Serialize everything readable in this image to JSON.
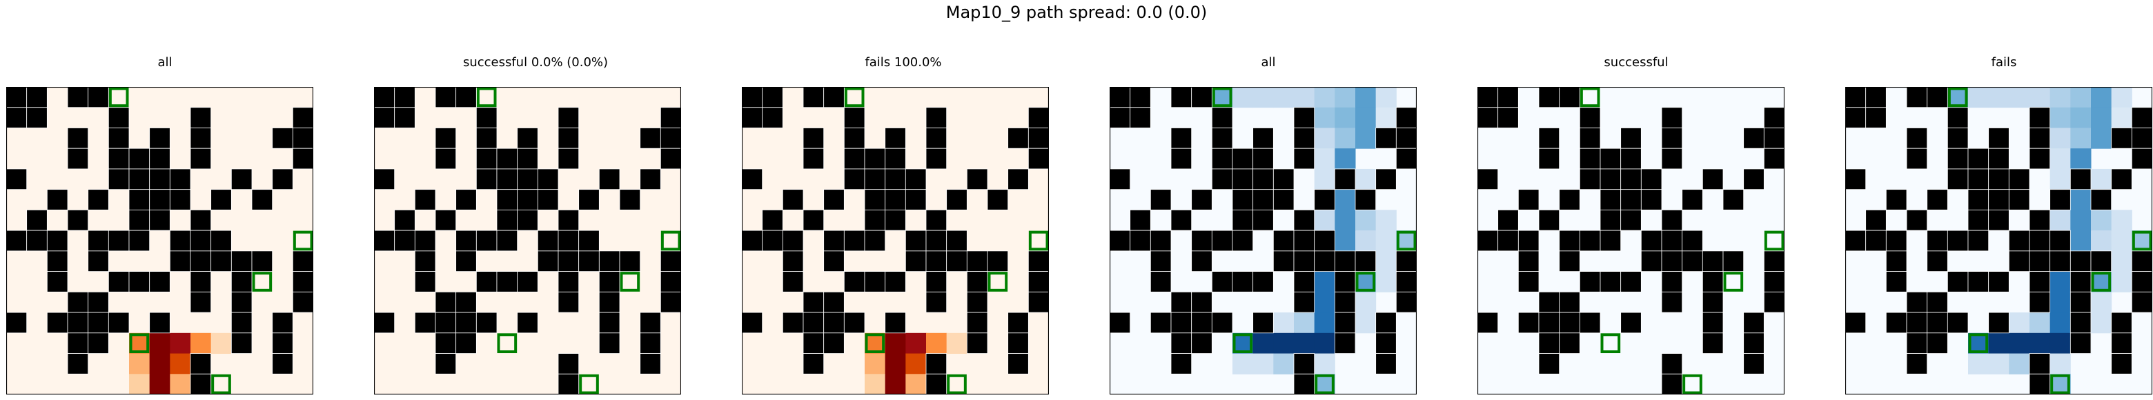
{
  "title": "Map10_9 path spread: 0.0 (0.0)",
  "chart_data": {
    "type": "heatmap",
    "title": "Map10_9 path spread: 0.0 (0.0)",
    "grid_size": [
      15,
      15
    ],
    "walls": [
      [
        0,
        0
      ],
      [
        0,
        1
      ],
      [
        0,
        3
      ],
      [
        0,
        4
      ],
      [
        1,
        0
      ],
      [
        1,
        1
      ],
      [
        1,
        5
      ],
      [
        1,
        9
      ],
      [
        1,
        14
      ],
      [
        2,
        3
      ],
      [
        2,
        5
      ],
      [
        2,
        7
      ],
      [
        2,
        9
      ],
      [
        2,
        13
      ],
      [
        2,
        14
      ],
      [
        3,
        3
      ],
      [
        3,
        5
      ],
      [
        3,
        6
      ],
      [
        3,
        7
      ],
      [
        3,
        9
      ],
      [
        3,
        14
      ],
      [
        4,
        0
      ],
      [
        4,
        5
      ],
      [
        4,
        6
      ],
      [
        4,
        7
      ],
      [
        4,
        8
      ],
      [
        4,
        11
      ],
      [
        4,
        13
      ],
      [
        5,
        2
      ],
      [
        5,
        4
      ],
      [
        5,
        6
      ],
      [
        5,
        7
      ],
      [
        5,
        8
      ],
      [
        5,
        10
      ],
      [
        5,
        12
      ],
      [
        6,
        1
      ],
      [
        6,
        3
      ],
      [
        6,
        6
      ],
      [
        6,
        7
      ],
      [
        6,
        9
      ],
      [
        7,
        0
      ],
      [
        7,
        1
      ],
      [
        7,
        2
      ],
      [
        7,
        4
      ],
      [
        7,
        5
      ],
      [
        7,
        6
      ],
      [
        7,
        8
      ],
      [
        7,
        9
      ],
      [
        7,
        10
      ],
      [
        8,
        2
      ],
      [
        8,
        4
      ],
      [
        8,
        8
      ],
      [
        8,
        9
      ],
      [
        8,
        10
      ],
      [
        8,
        11
      ],
      [
        8,
        12
      ],
      [
        8,
        14
      ],
      [
        9,
        2
      ],
      [
        9,
        5
      ],
      [
        9,
        6
      ],
      [
        9,
        7
      ],
      [
        9,
        9
      ],
      [
        9,
        11
      ],
      [
        9,
        14
      ],
      [
        10,
        3
      ],
      [
        10,
        4
      ],
      [
        10,
        9
      ],
      [
        10,
        11
      ],
      [
        10,
        14
      ],
      [
        11,
        0
      ],
      [
        11,
        2
      ],
      [
        11,
        3
      ],
      [
        11,
        4
      ],
      [
        11,
        5
      ],
      [
        11,
        7
      ],
      [
        11,
        11
      ],
      [
        11,
        13
      ],
      [
        12,
        3
      ],
      [
        12,
        4
      ],
      [
        12,
        11
      ],
      [
        12,
        13
      ],
      [
        13,
        3
      ],
      [
        13,
        9
      ],
      [
        13,
        13
      ],
      [
        14,
        9
      ]
    ],
    "markers": [
      [
        0,
        5
      ],
      [
        7,
        14
      ],
      [
        9,
        12
      ],
      [
        12,
        6
      ],
      [
        14,
        10
      ]
    ],
    "panels": [
      {
        "title": "all",
        "colormap": "orange",
        "heat": [
          [
            12,
            6,
            0.45
          ],
          [
            12,
            7,
            1.0
          ],
          [
            12,
            8,
            0.85
          ],
          [
            12,
            9,
            0.4
          ],
          [
            12,
            10,
            0.15
          ],
          [
            13,
            6,
            0.3
          ],
          [
            13,
            7,
            1.0
          ],
          [
            13,
            8,
            0.6
          ],
          [
            14,
            6,
            0.2
          ],
          [
            14,
            7,
            1.0
          ],
          [
            14,
            8,
            0.3
          ]
        ]
      },
      {
        "title": "successful 0.0% (0.0%)",
        "colormap": "orange",
        "heat": []
      },
      {
        "title": "fails 100.0%",
        "colormap": "orange",
        "heat": [
          [
            12,
            6,
            0.45
          ],
          [
            12,
            7,
            1.0
          ],
          [
            12,
            8,
            0.85
          ],
          [
            12,
            9,
            0.4
          ],
          [
            12,
            10,
            0.15
          ],
          [
            13,
            6,
            0.3
          ],
          [
            13,
            7,
            1.0
          ],
          [
            13,
            8,
            0.6
          ],
          [
            14,
            6,
            0.2
          ],
          [
            14,
            7,
            1.0
          ],
          [
            14,
            8,
            0.3
          ]
        ]
      },
      {
        "title": "all",
        "colormap": "blue",
        "heat": [
          [
            0,
            5,
            0.4
          ],
          [
            0,
            6,
            0.2
          ],
          [
            0,
            7,
            0.2
          ],
          [
            0,
            8,
            0.2
          ],
          [
            0,
            9,
            0.2
          ],
          [
            0,
            10,
            0.25
          ],
          [
            0,
            11,
            0.3
          ],
          [
            0,
            12,
            0.45
          ],
          [
            0,
            13,
            0.15
          ],
          [
            1,
            10,
            0.3
          ],
          [
            1,
            11,
            0.35
          ],
          [
            1,
            12,
            0.45
          ],
          [
            1,
            13,
            0.12
          ],
          [
            2,
            10,
            0.2
          ],
          [
            2,
            11,
            0.3
          ],
          [
            2,
            12,
            0.45
          ],
          [
            3,
            10,
            0.15
          ],
          [
            3,
            11,
            0.5
          ],
          [
            4,
            10,
            0.15
          ],
          [
            4,
            12,
            0.15
          ],
          [
            5,
            11,
            0.5
          ],
          [
            5,
            12,
            0.2
          ],
          [
            6,
            10,
            0.2
          ],
          [
            6,
            11,
            0.5
          ],
          [
            6,
            12,
            0.25
          ],
          [
            6,
            13,
            0.15
          ],
          [
            7,
            11,
            0.5
          ],
          [
            7,
            12,
            0.2
          ],
          [
            7,
            13,
            0.15
          ],
          [
            7,
            14,
            0.3
          ],
          [
            8,
            10,
            0.2
          ],
          [
            8,
            11,
            0.55
          ],
          [
            8,
            12,
            0.25
          ],
          [
            8,
            13,
            0.15
          ],
          [
            9,
            10,
            0.6
          ],
          [
            9,
            11,
            0.85
          ],
          [
            9,
            12,
            0.45
          ],
          [
            9,
            13,
            0.15
          ],
          [
            10,
            10,
            0.6
          ],
          [
            10,
            12,
            0.15
          ],
          [
            11,
            8,
            0.15
          ],
          [
            11,
            9,
            0.25
          ],
          [
            11,
            10,
            0.6
          ],
          [
            11,
            12,
            0.15
          ],
          [
            12,
            6,
            0.6
          ],
          [
            12,
            7,
            0.95
          ],
          [
            12,
            8,
            0.95
          ],
          [
            12,
            9,
            0.95
          ],
          [
            12,
            10,
            0.95
          ],
          [
            12,
            11,
            0.3
          ],
          [
            13,
            6,
            0.15
          ],
          [
            13,
            7,
            0.15
          ],
          [
            13,
            8,
            0.25
          ],
          [
            13,
            9,
            0.15
          ],
          [
            13,
            10,
            0.15
          ],
          [
            14,
            9,
            0.1
          ],
          [
            14,
            10,
            0.35
          ]
        ]
      },
      {
        "title": "successful",
        "colormap": "blue",
        "heat": []
      },
      {
        "title": "fails",
        "colormap": "blue",
        "heat": [
          [
            0,
            5,
            0.4
          ],
          [
            0,
            6,
            0.2
          ],
          [
            0,
            7,
            0.2
          ],
          [
            0,
            8,
            0.2
          ],
          [
            0,
            9,
            0.2
          ],
          [
            0,
            10,
            0.25
          ],
          [
            0,
            11,
            0.3
          ],
          [
            0,
            12,
            0.45
          ],
          [
            0,
            13,
            0.15
          ],
          [
            1,
            10,
            0.3
          ],
          [
            1,
            11,
            0.35
          ],
          [
            1,
            12,
            0.45
          ],
          [
            1,
            13,
            0.12
          ],
          [
            2,
            10,
            0.2
          ],
          [
            2,
            11,
            0.3
          ],
          [
            2,
            12,
            0.45
          ],
          [
            3,
            10,
            0.15
          ],
          [
            3,
            11,
            0.5
          ],
          [
            4,
            10,
            0.15
          ],
          [
            4,
            12,
            0.15
          ],
          [
            5,
            11,
            0.5
          ],
          [
            5,
            12,
            0.2
          ],
          [
            6,
            10,
            0.2
          ],
          [
            6,
            11,
            0.5
          ],
          [
            6,
            12,
            0.25
          ],
          [
            6,
            13,
            0.15
          ],
          [
            7,
            11,
            0.5
          ],
          [
            7,
            12,
            0.2
          ],
          [
            7,
            13,
            0.15
          ],
          [
            7,
            14,
            0.3
          ],
          [
            8,
            10,
            0.2
          ],
          [
            8,
            11,
            0.55
          ],
          [
            8,
            12,
            0.25
          ],
          [
            8,
            13,
            0.15
          ],
          [
            9,
            10,
            0.6
          ],
          [
            9,
            11,
            0.85
          ],
          [
            9,
            12,
            0.45
          ],
          [
            9,
            13,
            0.15
          ],
          [
            10,
            10,
            0.6
          ],
          [
            10,
            12,
            0.15
          ],
          [
            11,
            8,
            0.15
          ],
          [
            11,
            9,
            0.25
          ],
          [
            11,
            10,
            0.6
          ],
          [
            11,
            12,
            0.15
          ],
          [
            12,
            6,
            0.6
          ],
          [
            12,
            7,
            0.95
          ],
          [
            12,
            8,
            0.95
          ],
          [
            12,
            9,
            0.95
          ],
          [
            12,
            10,
            0.95
          ],
          [
            12,
            11,
            0.3
          ],
          [
            13,
            6,
            0.15
          ],
          [
            13,
            7,
            0.15
          ],
          [
            13,
            8,
            0.25
          ],
          [
            13,
            9,
            0.15
          ],
          [
            13,
            10,
            0.15
          ],
          [
            14,
            9,
            0.1
          ],
          [
            14,
            10,
            0.35
          ]
        ]
      }
    ],
    "colors": {
      "wall": "#000000",
      "marker": "#008000",
      "orange_base": "#fff5eb",
      "blue_base": "#f7fbff"
    }
  }
}
